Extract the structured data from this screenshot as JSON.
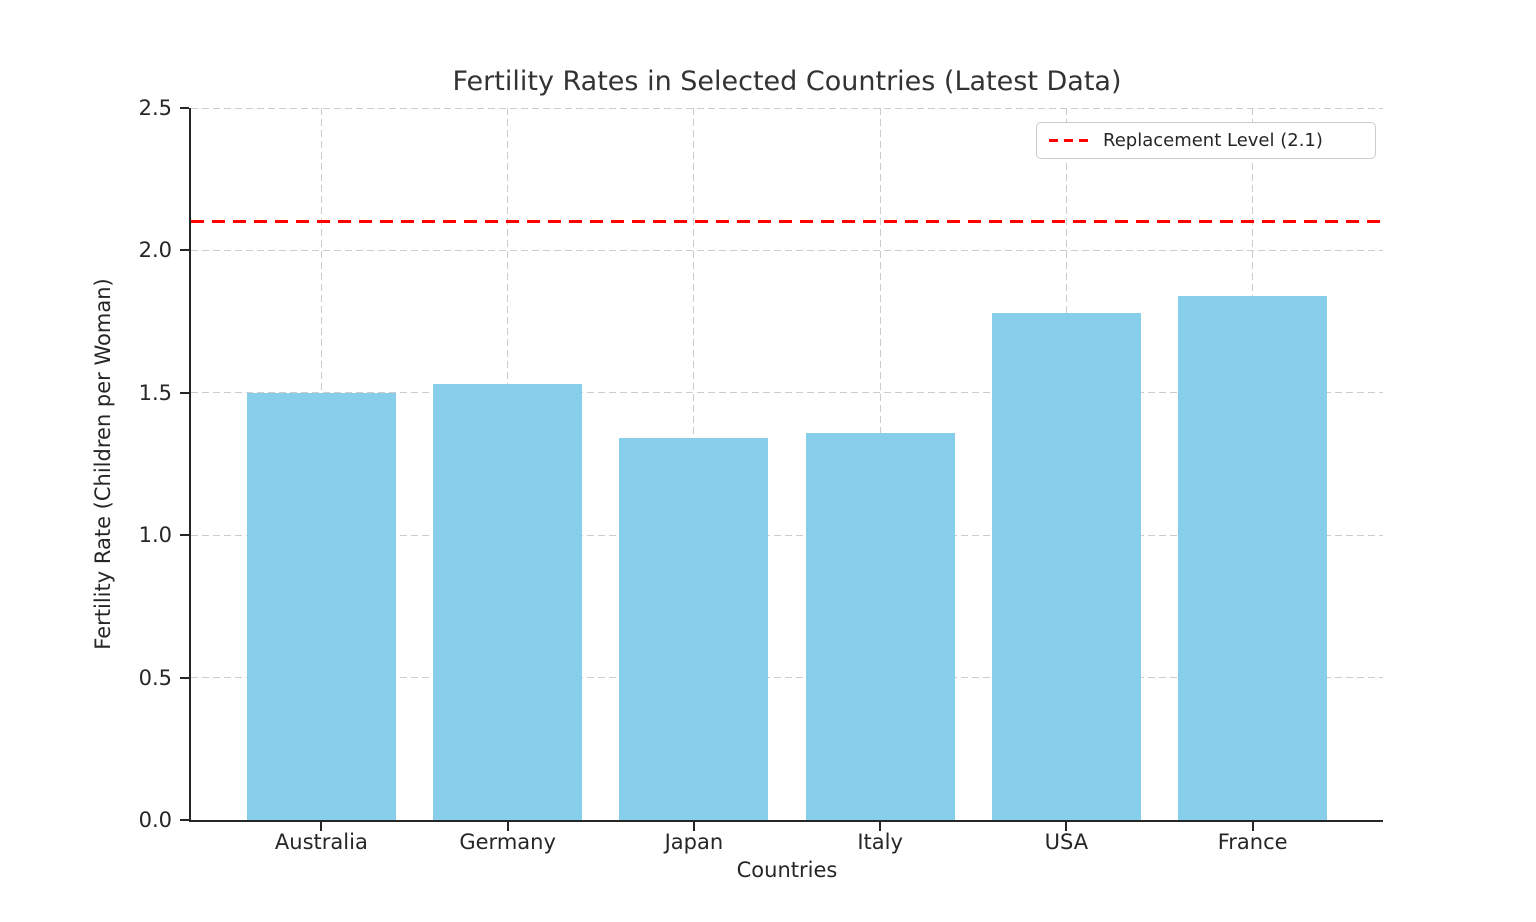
{
  "chart_data": {
    "type": "bar",
    "title": "Fertility Rates in Selected Countries (Latest Data)",
    "xlabel": "Countries",
    "ylabel": "Fertility Rate (Children per Woman)",
    "categories": [
      "Australia",
      "Germany",
      "Japan",
      "Italy",
      "USA",
      "France"
    ],
    "values": [
      1.5,
      1.53,
      1.34,
      1.36,
      1.78,
      1.84
    ],
    "ylim": [
      0.0,
      2.5
    ],
    "yticks": [
      "0.0",
      "0.5",
      "1.0",
      "1.5",
      "2.0",
      "2.5"
    ],
    "grid": true,
    "grid_style": "dashed",
    "bar_color": "#87CEEB",
    "reference_line": {
      "value": 2.1,
      "color": "#FF0000",
      "style": "dashed",
      "label": "Replacement Level (2.1)"
    },
    "legend": {
      "position": "upper right",
      "entries": [
        "Replacement Level (2.1)"
      ]
    }
  }
}
